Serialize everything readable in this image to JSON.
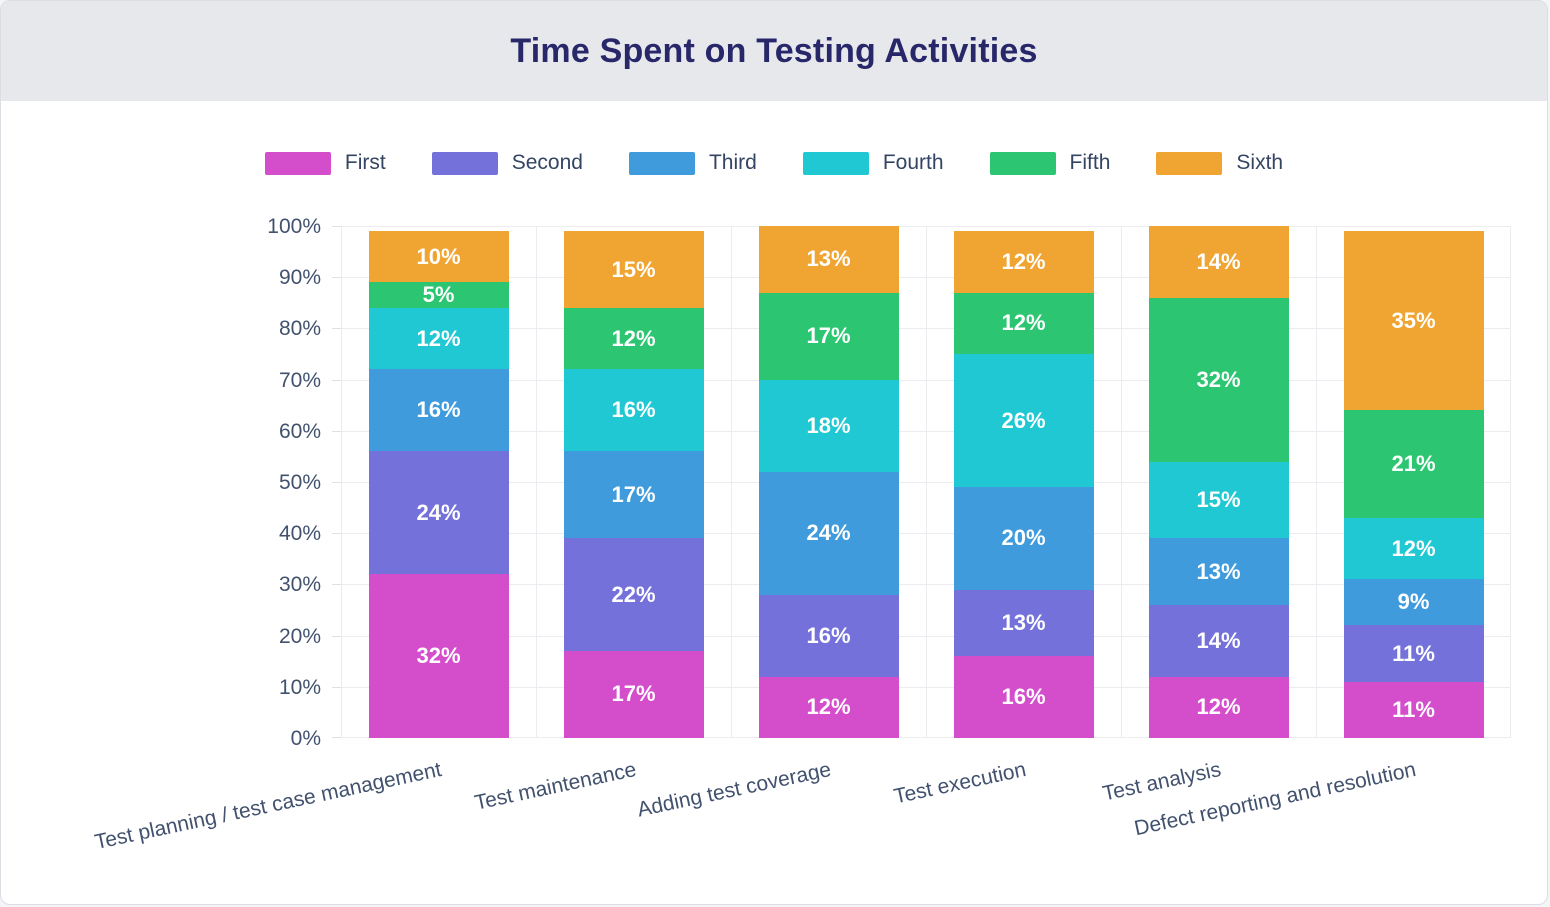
{
  "header": {
    "title": "Time Spent on Testing Activities"
  },
  "colors": {
    "header_bg": "#e7e8ec",
    "title_text": "#27276a",
    "axis_text": "#42526e",
    "grid": "#ebecf0",
    "value_label": "#ffffff"
  },
  "chart_data": {
    "type": "bar",
    "stacked": true,
    "title": "Time Spent on Testing Activities",
    "legend_position": "top",
    "grid": true,
    "ylim": [
      0,
      100
    ],
    "value_suffix": "%",
    "y_ticks": [
      "0%",
      "10%",
      "20%",
      "30%",
      "40%",
      "50%",
      "60%",
      "70%",
      "80%",
      "90%",
      "100%"
    ],
    "categories": [
      "Test planning / test case management",
      "Test maintenance",
      "Adding test coverage",
      "Test execution",
      "Test analysis",
      "Defect reporting and resolution"
    ],
    "series": [
      {
        "name": "First",
        "color": "#d44ecc",
        "values": [
          32,
          17,
          12,
          16,
          12,
          11
        ]
      },
      {
        "name": "Second",
        "color": "#7471db",
        "values": [
          24,
          22,
          16,
          13,
          14,
          11
        ]
      },
      {
        "name": "Third",
        "color": "#3f9bdc",
        "values": [
          16,
          17,
          24,
          20,
          13,
          9
        ]
      },
      {
        "name": "Fourth",
        "color": "#1fc8d2",
        "values": [
          12,
          16,
          18,
          26,
          15,
          12
        ]
      },
      {
        "name": "Fifth",
        "color": "#2cc672",
        "values": [
          5,
          12,
          17,
          12,
          32,
          21
        ]
      },
      {
        "name": "Sixth",
        "color": "#f0a431",
        "values": [
          10,
          15,
          13,
          12,
          14,
          35
        ]
      }
    ]
  }
}
